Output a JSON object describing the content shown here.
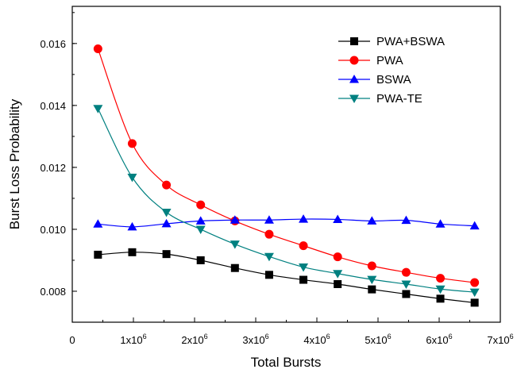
{
  "chart_data": {
    "type": "line",
    "xlabel": "Total Bursts",
    "ylabel": "Burst Loss Probability",
    "xlim": [
      0,
      7000000
    ],
    "ylim": [
      0.007,
      0.0172
    ],
    "x_ticks": [
      {
        "value": 0,
        "label": "0",
        "exp": ""
      },
      {
        "value": 1000000,
        "label": "1x10",
        "exp": "6"
      },
      {
        "value": 2000000,
        "label": "2x10",
        "exp": "6"
      },
      {
        "value": 3000000,
        "label": "3x10",
        "exp": "6"
      },
      {
        "value": 4000000,
        "label": "4x10",
        "exp": "6"
      },
      {
        "value": 5000000,
        "label": "5x10",
        "exp": "6"
      },
      {
        "value": 6000000,
        "label": "6x10",
        "exp": "6"
      },
      {
        "value": 7000000,
        "label": "7x10",
        "exp": "6"
      }
    ],
    "y_ticks": [
      {
        "value": 0.008,
        "label": "0.008"
      },
      {
        "value": 0.01,
        "label": "0.010"
      },
      {
        "value": 0.012,
        "label": "0.012"
      },
      {
        "value": 0.014,
        "label": "0.014"
      },
      {
        "value": 0.016,
        "label": "0.016"
      }
    ],
    "grid": false,
    "legend_position": "top-right",
    "x": [
      420000,
      980000,
      1540000,
      2100000,
      2660000,
      3220000,
      3780000,
      4340000,
      4900000,
      5460000,
      6020000,
      6580000
    ],
    "series": [
      {
        "name": "PWA+BSWA",
        "color": "#000000",
        "marker": "square",
        "values": [
          0.00918,
          0.00926,
          0.0092,
          0.009,
          0.00875,
          0.00853,
          0.00837,
          0.00823,
          0.00806,
          0.00791,
          0.00776,
          0.00763
        ]
      },
      {
        "name": "PWA",
        "color": "#ff0000",
        "marker": "circle",
        "values": [
          0.01583,
          0.01277,
          0.01143,
          0.01079,
          0.01027,
          0.00984,
          0.00947,
          0.00911,
          0.00882,
          0.00861,
          0.00842,
          0.00828
        ]
      },
      {
        "name": "BSWA",
        "color": "#0000ff",
        "marker": "triangle-up",
        "values": [
          0.01017,
          0.01008,
          0.01018,
          0.01027,
          0.0103,
          0.0103,
          0.01033,
          0.01032,
          0.01027,
          0.01029,
          0.01017,
          0.01011
        ]
      },
      {
        "name": "PWA-TE",
        "color": "#008080",
        "marker": "triangle-down",
        "values": [
          0.0139,
          0.01168,
          0.01055,
          0.01,
          0.00952,
          0.00912,
          0.00878,
          0.00857,
          0.00838,
          0.00823,
          0.00807,
          0.00797
        ]
      }
    ]
  }
}
